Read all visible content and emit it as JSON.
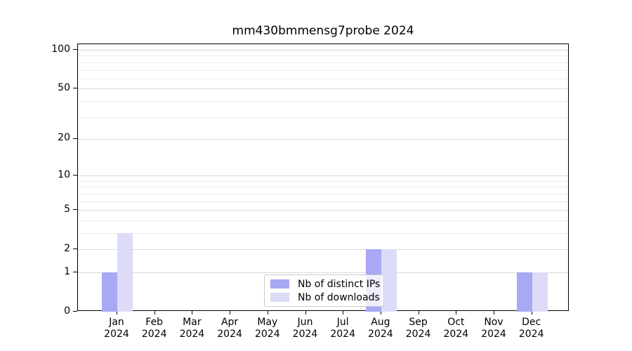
{
  "title": "mm430bmmensg7probe 2024",
  "year_label": "2024",
  "colors": {
    "distinct_ips_bar": "#a8a8f4",
    "downloads_bar": "#dcdcf8",
    "major_gridline": "#d9d9d9",
    "minor_gridline": "#ececec",
    "axis": "#000000",
    "legend_border": "#cccccc"
  },
  "legend": {
    "items": [
      {
        "label": "Nb of distinct IPs",
        "color": "#a8a8f4"
      },
      {
        "label": "Nb of downloads",
        "color": "#dcdcf8"
      }
    ]
  },
  "chart_data": {
    "type": "bar",
    "title": "mm430bmmensg7probe 2024",
    "categories": [
      "Jan 2024",
      "Feb 2024",
      "Mar 2024",
      "Apr 2024",
      "May 2024",
      "Jun 2024",
      "Jul 2024",
      "Aug 2024",
      "Sep 2024",
      "Oct 2024",
      "Nov 2024",
      "Dec 2024"
    ],
    "month_short": [
      "Jan",
      "Feb",
      "Mar",
      "Apr",
      "May",
      "Jun",
      "Jul",
      "Aug",
      "Sep",
      "Oct",
      "Nov",
      "Dec"
    ],
    "series": [
      {
        "name": "Nb of distinct IPs",
        "color": "#a8a8f4",
        "values": [
          1,
          0,
          0,
          0,
          0,
          0,
          0,
          2,
          0,
          0,
          0,
          1
        ]
      },
      {
        "name": "Nb of downloads",
        "color": "#dcdcf8",
        "values": [
          3,
          0,
          0,
          0,
          0,
          0,
          0,
          2,
          0,
          0,
          0,
          1
        ]
      }
    ],
    "xlabel": "",
    "ylabel": "",
    "y_scale": "log1p",
    "ylim": [
      0,
      110
    ],
    "y_major_ticks": [
      0,
      1,
      2,
      5,
      10,
      20,
      50,
      100
    ],
    "y_minor_gridlines": [
      3,
      4,
      6,
      7,
      8,
      9,
      30,
      40,
      60,
      70,
      80,
      90
    ],
    "grid": "horizontal",
    "legend_position": "lower center"
  }
}
